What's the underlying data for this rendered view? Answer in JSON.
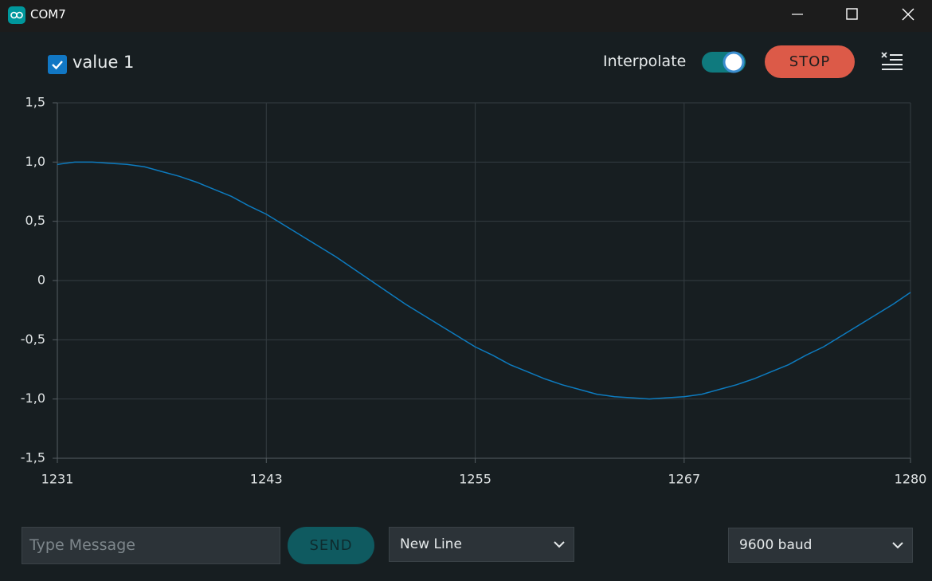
{
  "window": {
    "title": "COM7"
  },
  "toolbar": {
    "interpolate": "Interpolate",
    "stop": "STOP"
  },
  "chart_data": {
    "type": "line",
    "x": [
      1231,
      1232,
      1233,
      1234,
      1235,
      1236,
      1237,
      1238,
      1239,
      1240,
      1241,
      1242,
      1243,
      1244,
      1245,
      1246,
      1247,
      1248,
      1249,
      1250,
      1251,
      1252,
      1253,
      1254,
      1255,
      1256,
      1257,
      1258,
      1259,
      1260,
      1261,
      1262,
      1263,
      1264,
      1265,
      1266,
      1267,
      1268,
      1269,
      1270,
      1271,
      1272,
      1273,
      1274,
      1275,
      1276,
      1277,
      1278,
      1279,
      1280
    ],
    "series": [
      {
        "name": "value 1",
        "color": "#0d7bbf",
        "values": [
          0.98,
          1.0,
          1.0,
          0.99,
          0.98,
          0.96,
          0.92,
          0.88,
          0.83,
          0.77,
          0.71,
          0.63,
          0.56,
          0.47,
          0.38,
          0.29,
          0.2,
          0.1,
          0,
          -0.1,
          -0.2,
          -0.29,
          -0.38,
          -0.47,
          -0.56,
          -0.63,
          -0.71,
          -0.77,
          -0.83,
          -0.88,
          -0.92,
          -0.96,
          -0.98,
          -0.99,
          -1.0,
          -0.99,
          -0.98,
          -0.96,
          -0.92,
          -0.88,
          -0.83,
          -0.77,
          -0.71,
          -0.63,
          -0.56,
          -0.47,
          -0.38,
          -0.29,
          -0.2,
          -0.1
        ]
      }
    ],
    "xlim": [
      1231,
      1280
    ],
    "ylim": [
      -1.5,
      1.5
    ],
    "xticks": [
      1231,
      1243,
      1255,
      1267,
      1280
    ],
    "yticks": [
      {
        "value": -1.5,
        "label": "-1,5"
      },
      {
        "value": -1.0,
        "label": "-1,0"
      },
      {
        "value": -0.5,
        "label": "-0,5"
      },
      0,
      {
        "value": 0.5,
        "label": "0,5"
      },
      {
        "value": 1.0,
        "label": "1,0"
      },
      {
        "value": 1.5,
        "label": "1,5"
      }
    ],
    "grid": true
  },
  "footer": {
    "message_placeholder": "Type Message",
    "send": "SEND",
    "line_ending": "New Line",
    "baud": "9600 baud"
  }
}
